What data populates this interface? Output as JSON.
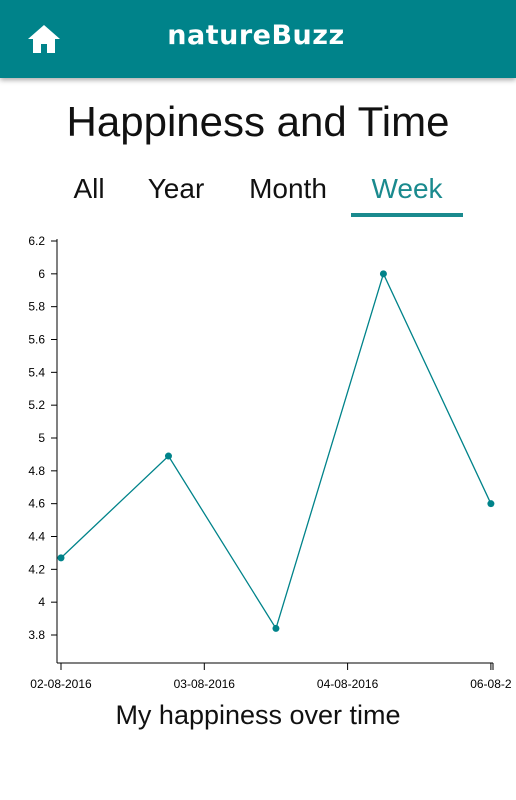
{
  "header": {
    "home_icon": "home-icon",
    "app_name": "natureBuzz",
    "brand_color": "#00838a"
  },
  "page": {
    "title": "Happiness and Time",
    "caption": "My happiness over time"
  },
  "tabs": [
    {
      "label": "All",
      "active": false
    },
    {
      "label": "Year",
      "active": false
    },
    {
      "label": "Month",
      "active": false
    },
    {
      "label": "Week",
      "active": true
    }
  ],
  "chart_data": {
    "type": "line",
    "title": "",
    "xlabel": "",
    "ylabel": "",
    "x": [
      "02-08-2016",
      "02-08-2016 18:00",
      "03-08-2016 12:00",
      "04-08-2016 06:00",
      "05-08-2016"
    ],
    "series": [
      {
        "values": [
          4.27,
          4.89,
          3.84,
          6.0,
          4.6
        ],
        "color": "#00838a"
      }
    ],
    "x_tick_labels": [
      "02-08-2016",
      "03-08-2016",
      "04-08-2016",
      "06-08-2"
    ],
    "y_ticks": [
      3.8,
      4.0,
      4.2,
      4.4,
      4.6,
      4.8,
      5.0,
      5.2,
      5.4,
      5.6,
      5.8,
      6.0,
      6.2
    ],
    "y_tick_labels": [
      "3.8",
      "4",
      "4.2",
      "4.4",
      "4.6",
      "4.8",
      "5",
      "5.2",
      "5.4",
      "5.6",
      "5.8",
      "6",
      "6.2"
    ],
    "ylim": [
      3.6,
      6.2
    ],
    "grid": false
  }
}
